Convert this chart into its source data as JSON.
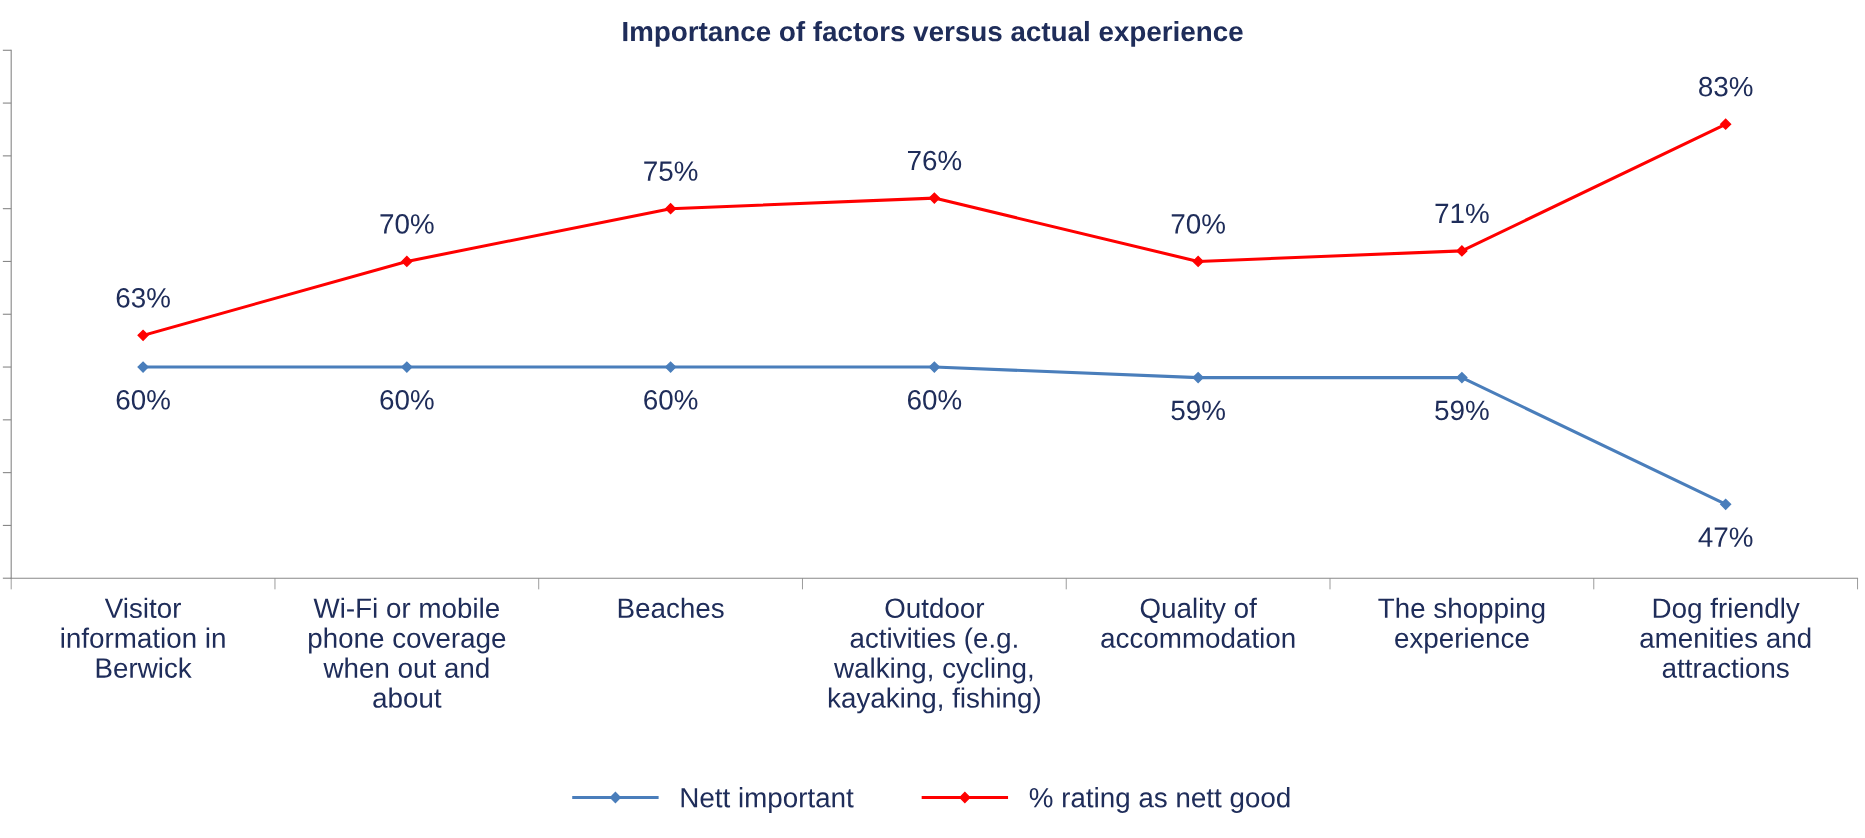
{
  "chart_data": {
    "type": "line",
    "title": "Importance of factors versus actual experience",
    "categories": [
      "Visitor\ninformation in\nBerwick",
      "Wi-Fi or mobile\nphone coverage\nwhen out and\nabout",
      "Beaches",
      "Outdoor\nactivities (e.g.\nwalking, cycling,\nkayaking, fishing)",
      "Quality of\naccommodation",
      "The shopping\nexperience",
      "Dog friendly\namenities and\nattractions"
    ],
    "series": [
      {
        "name": "Nett important",
        "color": "#4a7ebb",
        "values": [
          60,
          60,
          60,
          60,
          59,
          59,
          47
        ],
        "value_labels": [
          "60%",
          "60%",
          "60%",
          "60%",
          "59%",
          "59%",
          "47%"
        ]
      },
      {
        "name": "% rating as nett good",
        "color": "#ff0000",
        "values": [
          63,
          70,
          75,
          76,
          70,
          71,
          83
        ],
        "value_labels": [
          "63%",
          "70%",
          "75%",
          "76%",
          "70%",
          "71%",
          "83%"
        ]
      }
    ],
    "ylim": [
      40,
      90
    ],
    "yticks": [
      {
        "value": 40,
        "label": null
      },
      {
        "value": 45,
        "label": null
      },
      {
        "value": 50,
        "label": null
      },
      {
        "value": 55,
        "label": null
      },
      {
        "value": 60,
        "label": null
      },
      {
        "value": 65,
        "label": null
      },
      {
        "value": 70,
        "label": null
      },
      {
        "value": 75,
        "label": null
      },
      {
        "value": 80,
        "label": null
      },
      {
        "value": 85,
        "label": null
      },
      {
        "value": 90,
        "label": null
      }
    ],
    "tick_labels": "x",
    "grid": false,
    "legend": "bottom",
    "marker": "diamond",
    "line_style": "solid"
  }
}
